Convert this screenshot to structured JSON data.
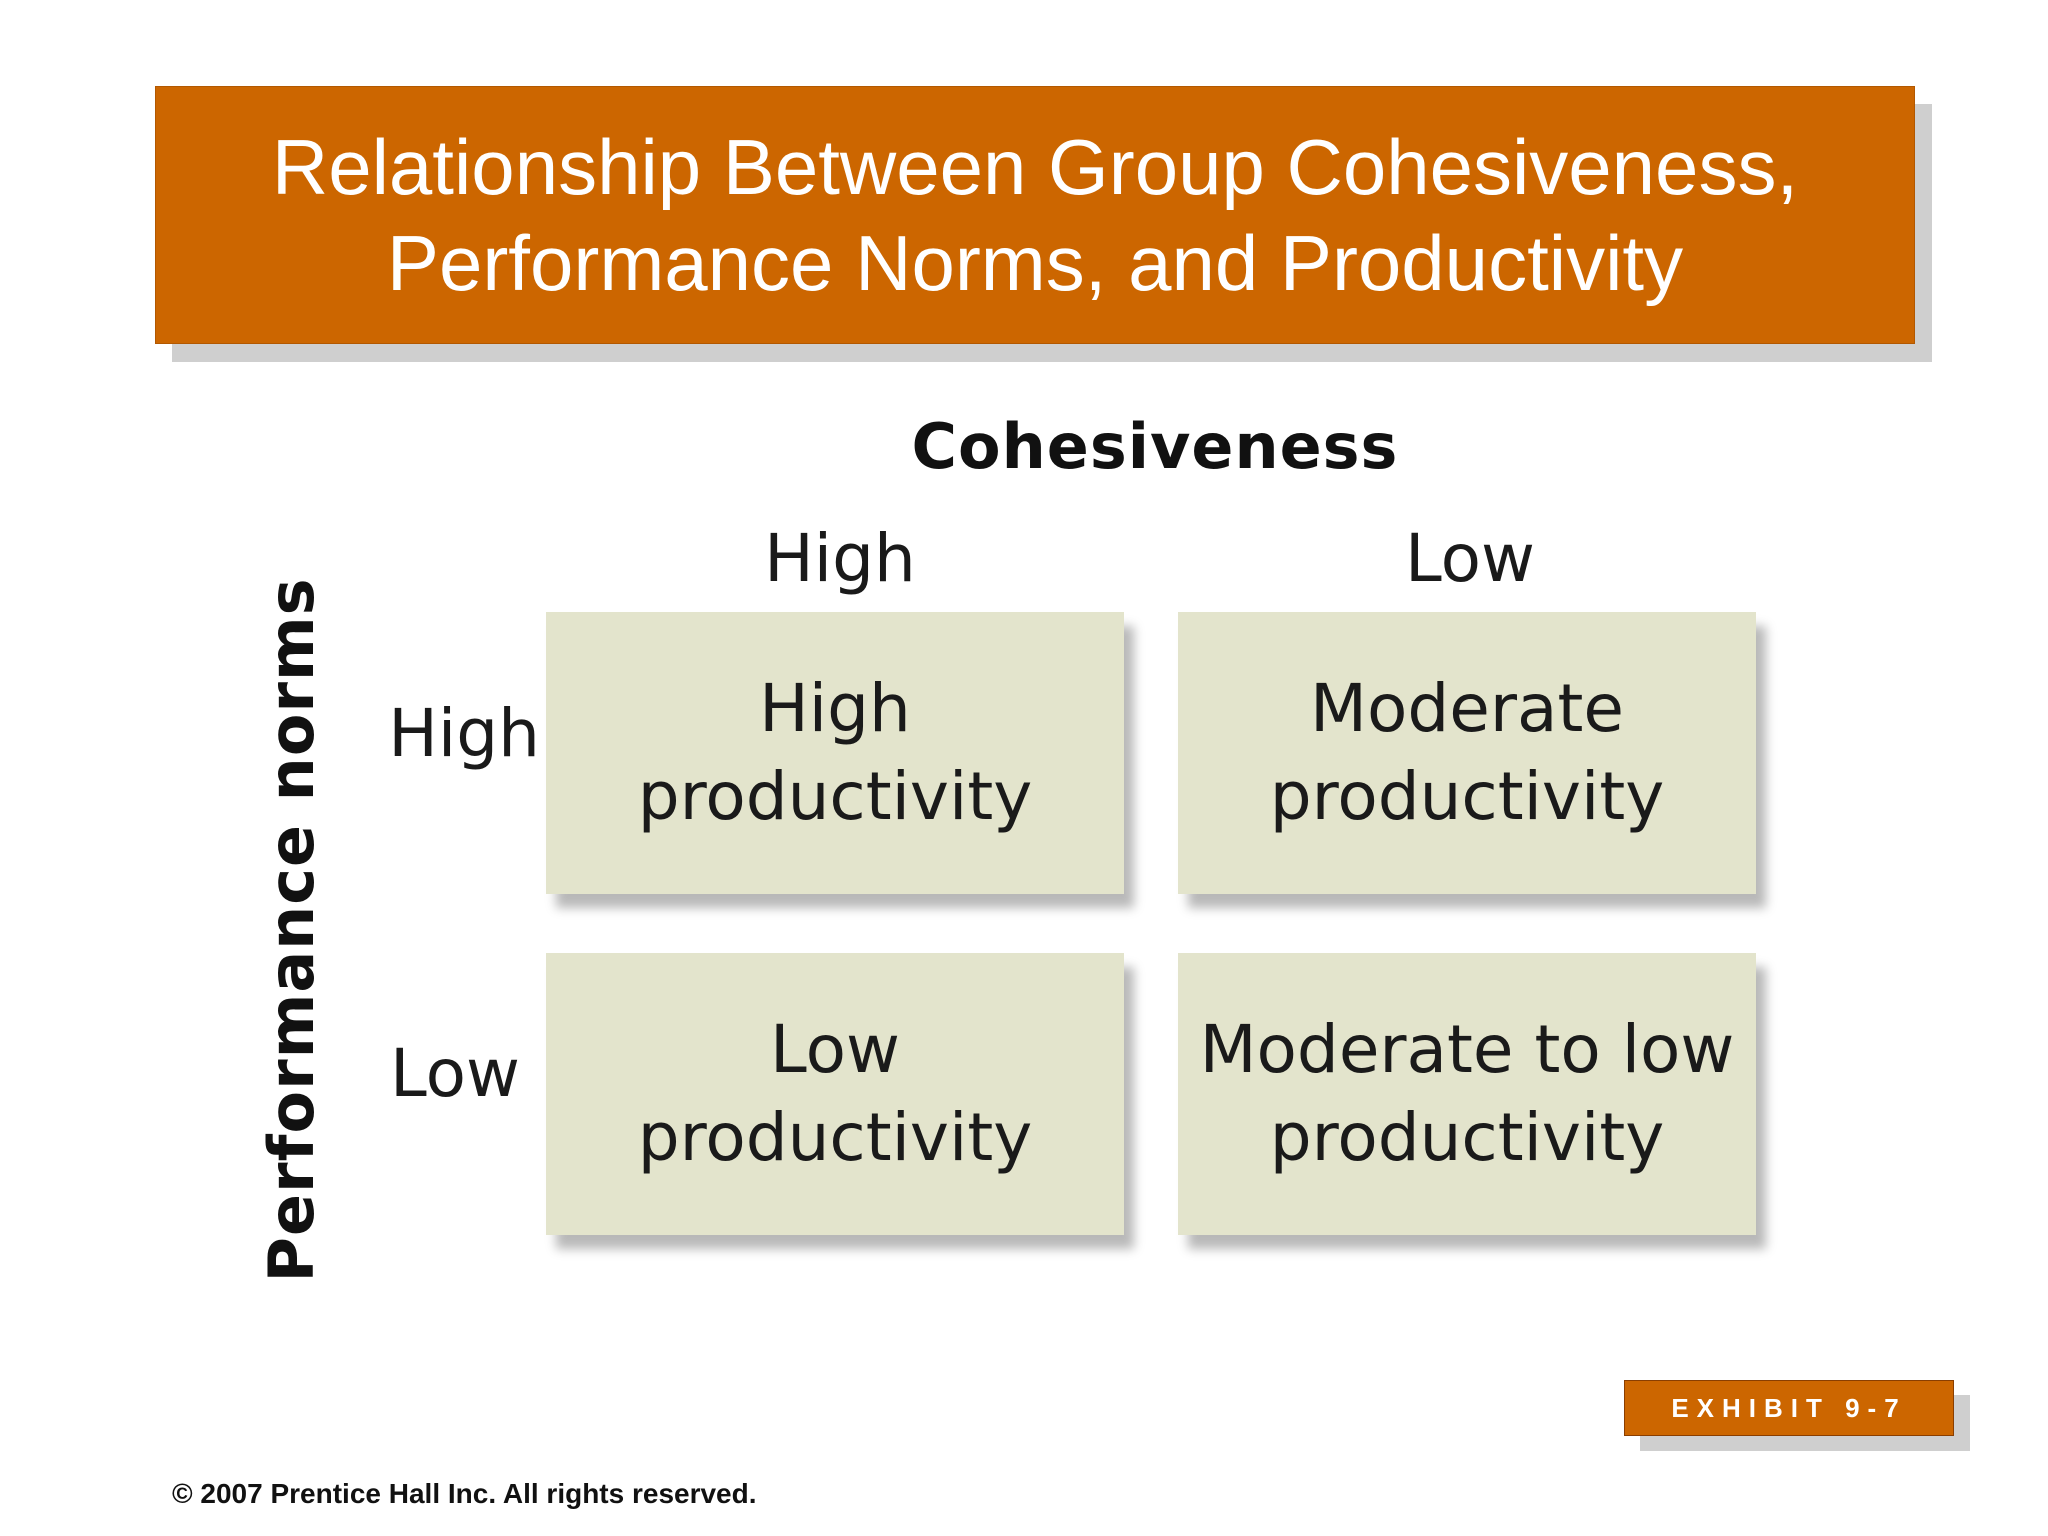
{
  "slide": {
    "title": "Relationship Between Group Cohesiveness, Performance Norms, and Productivity",
    "accent_color": "#cc6600",
    "cell_color": "#e3e4cc"
  },
  "matrix": {
    "column_axis_label": "Cohesiveness",
    "row_axis_label": "Performance norms",
    "column_levels": [
      "High",
      "Low"
    ],
    "row_levels": [
      "High",
      "Low"
    ],
    "cells": {
      "high_norms_high_cohesiveness": "High productivity",
      "high_norms_low_cohesiveness": "Moderate productivity",
      "low_norms_high_cohesiveness": "Low productivity",
      "low_norms_low_cohesiveness": "Moderate to low productivity"
    }
  },
  "exhibit_label": "EXHIBIT 9-7",
  "copyright": "© 2007 Prentice Hall Inc. All rights reserved."
}
